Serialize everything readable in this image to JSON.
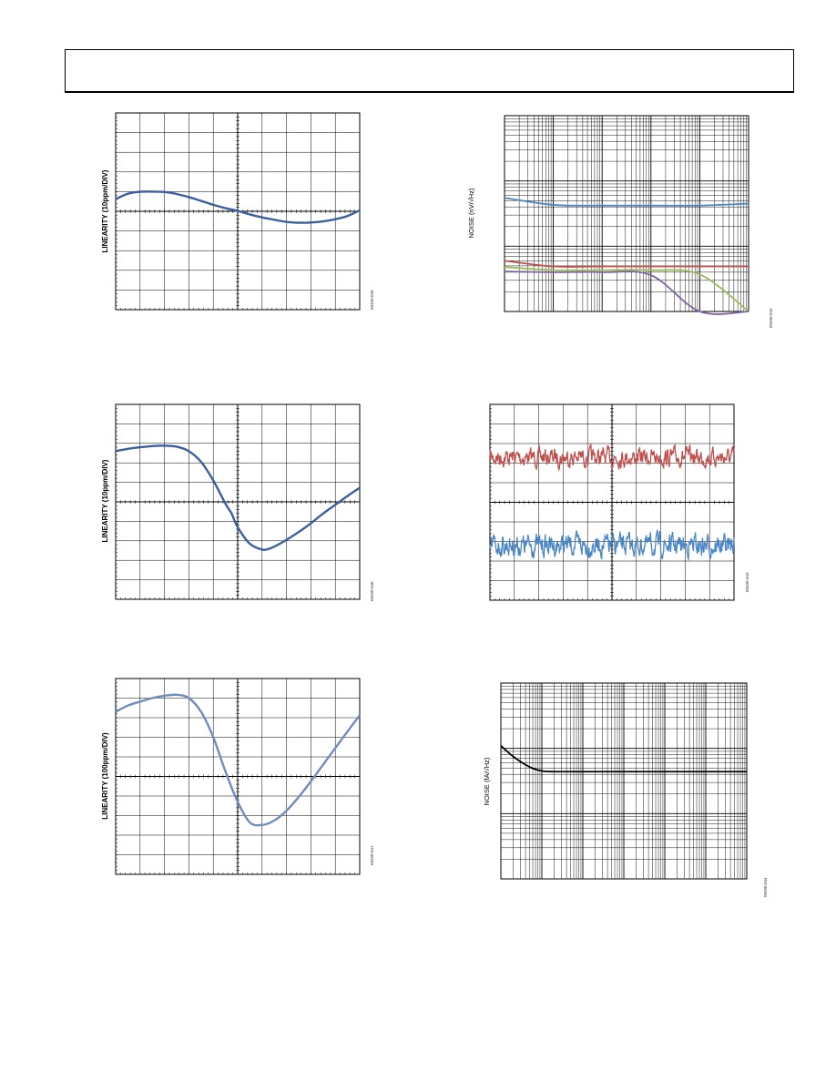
{
  "colors": {
    "frame": "#000000",
    "grid": "#000000",
    "linearity_curve": "#3b5fa0",
    "linearity_curve_light": "#6f8bc0",
    "noise_blue": "#4a86c5",
    "noise_red": "#c0504d",
    "noise_green": "#9bbb59",
    "noise_purple": "#8064a2",
    "noise_black": "#000000"
  },
  "chart_data": [
    {
      "id": "c1",
      "type": "line",
      "ylabel": "LINEARITY (10ppm/DIV)",
      "fig_id": "09490-039",
      "x": [
        0,
        0.05,
        0.1,
        0.15,
        0.2,
        0.25,
        0.3,
        0.35,
        0.4,
        0.45,
        0.5,
        0.55,
        0.6,
        0.65,
        0.7,
        0.75,
        0.8,
        0.85,
        0.9,
        0.95,
        1.0
      ],
      "series": [
        {
          "values": [
            0.62,
            0.89,
            0.99,
            1.0,
            0.98,
            0.88,
            0.72,
            0.53,
            0.33,
            0.16,
            0.02,
            -0.16,
            -0.31,
            -0.43,
            -0.54,
            -0.58,
            -0.57,
            -0.51,
            -0.4,
            -0.24,
            0.05
          ]
        }
      ],
      "ylim": [
        -5,
        5
      ],
      "grid": true
    },
    {
      "id": "c2",
      "type": "line",
      "ylabel": "LINEARITY (10ppm/DIV)",
      "fig_id": "09490-040",
      "x": [
        0,
        0.05,
        0.1,
        0.15,
        0.2,
        0.25,
        0.3,
        0.35,
        0.4,
        0.45,
        0.475,
        0.5,
        0.55,
        0.6,
        0.625,
        0.65,
        0.7,
        0.75,
        0.8,
        0.85,
        0.9,
        0.95,
        1.0
      ],
      "series": [
        {
          "values": [
            2.6,
            2.72,
            2.8,
            2.86,
            2.88,
            2.83,
            2.6,
            2.05,
            1.1,
            -0.1,
            -0.6,
            -1.3,
            -2.15,
            -2.45,
            -2.42,
            -2.3,
            -1.95,
            -1.55,
            -1.1,
            -0.6,
            -0.15,
            0.3,
            0.72
          ]
        }
      ],
      "ylim": [
        -5,
        5
      ],
      "grid": true
    },
    {
      "id": "c3",
      "type": "line",
      "ylabel": "LINEARITY (100ppm/DIV)",
      "fig_id": "09490-041",
      "x": [
        0,
        0.05,
        0.1,
        0.15,
        0.2,
        0.25,
        0.3,
        0.35,
        0.4,
        0.45,
        0.5,
        0.55,
        0.6,
        0.65,
        0.7,
        0.75,
        0.8,
        0.85,
        0.9,
        0.95,
        1.0
      ],
      "series": [
        {
          "values": [
            3.3,
            3.62,
            3.82,
            4.0,
            4.12,
            4.17,
            4.0,
            3.3,
            2.0,
            0.25,
            -1.3,
            -2.35,
            -2.48,
            -2.25,
            -1.75,
            -1.05,
            -0.25,
            0.6,
            1.45,
            2.3,
            3.12
          ]
        }
      ],
      "ylim": [
        -5,
        5
      ],
      "grid": true
    },
    {
      "id": "c4",
      "type": "line",
      "xscale": "log",
      "yscale": "log",
      "ylabel": "NOISE (nV/√Hz)",
      "fig_id": "09490-042",
      "x": [
        1,
        10,
        100,
        1000,
        10000,
        100000
      ],
      "xlim": [
        1,
        100000
      ],
      "ylim": [
        1,
        1000
      ],
      "series": [
        {
          "color": "blue",
          "values": [
            55,
            43,
            42,
            42,
            42,
            45
          ]
        },
        {
          "color": "red",
          "values": [
            6.0,
            4.9,
            4.9,
            4.9,
            4.9,
            4.9
          ]
        },
        {
          "color": "green",
          "values": [
            4.8,
            4.3,
            4.3,
            4.3,
            3.7,
            1.0
          ]
        },
        {
          "color": "purple",
          "values": [
            4.1,
            4.0,
            4.0,
            3.6,
            1.0,
            1.0
          ]
        }
      ],
      "grid": true
    },
    {
      "id": "c5",
      "type": "line",
      "fig_id": "09490-043",
      "series": [
        {
          "color": "red",
          "center_fraction": 0.27,
          "amplitude": 0.045
        },
        {
          "color": "blue",
          "center_fraction": 0.72,
          "amplitude": 0.055
        }
      ],
      "grid": true
    },
    {
      "id": "c6",
      "type": "line",
      "xscale": "log",
      "yscale": "log",
      "ylabel": "NOISE (fA/√Hz)",
      "fig_id": "09490-044",
      "x": [
        0.1,
        0.2,
        0.5,
        1,
        2,
        5,
        10,
        100,
        1000,
        10000,
        100000
      ],
      "xlim": [
        0.1,
        100000
      ],
      "ylim": [
        1,
        1000
      ],
      "series": [
        {
          "color": "black",
          "values": [
            110,
            75,
            52,
            45,
            44,
            44,
            44,
            44,
            44,
            44,
            44
          ]
        }
      ],
      "grid": true
    }
  ]
}
